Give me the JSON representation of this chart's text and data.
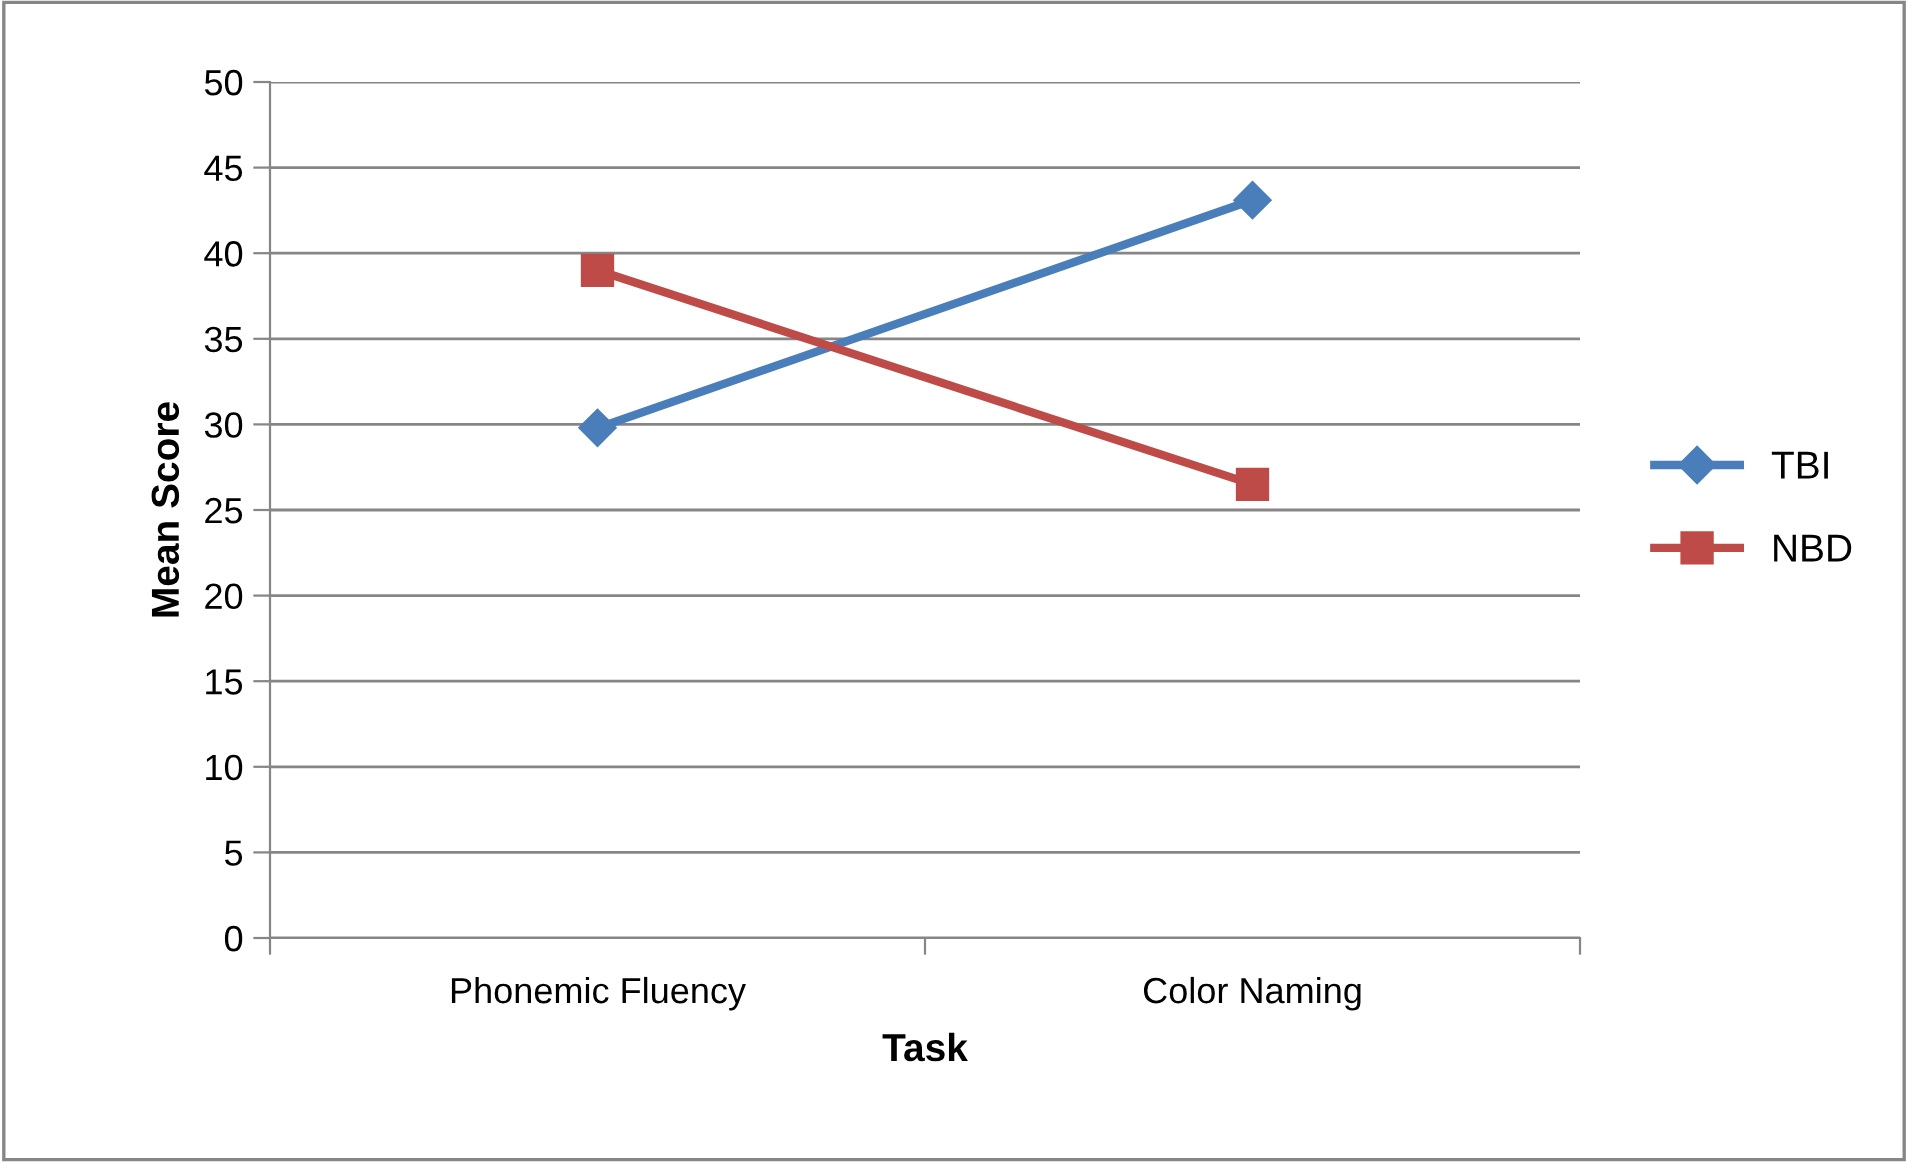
{
  "chart_data": {
    "type": "line",
    "xlabel": "Task",
    "ylabel": "Mean Score",
    "categories": [
      "Phonemic Fluency",
      "Color Naming"
    ],
    "series": [
      {
        "name": "TBI",
        "color": "#4a7ebb",
        "marker": "diamond",
        "values": [
          29.8,
          43.1
        ]
      },
      {
        "name": "NBD",
        "color": "#be4b48",
        "marker": "square",
        "values": [
          39.0,
          26.5
        ]
      }
    ],
    "ylim": [
      0,
      50
    ],
    "yticks": [
      0,
      5,
      10,
      15,
      20,
      25,
      30,
      35,
      40,
      45,
      50
    ],
    "grid": "y",
    "legend": "right",
    "line_style": "solid"
  }
}
